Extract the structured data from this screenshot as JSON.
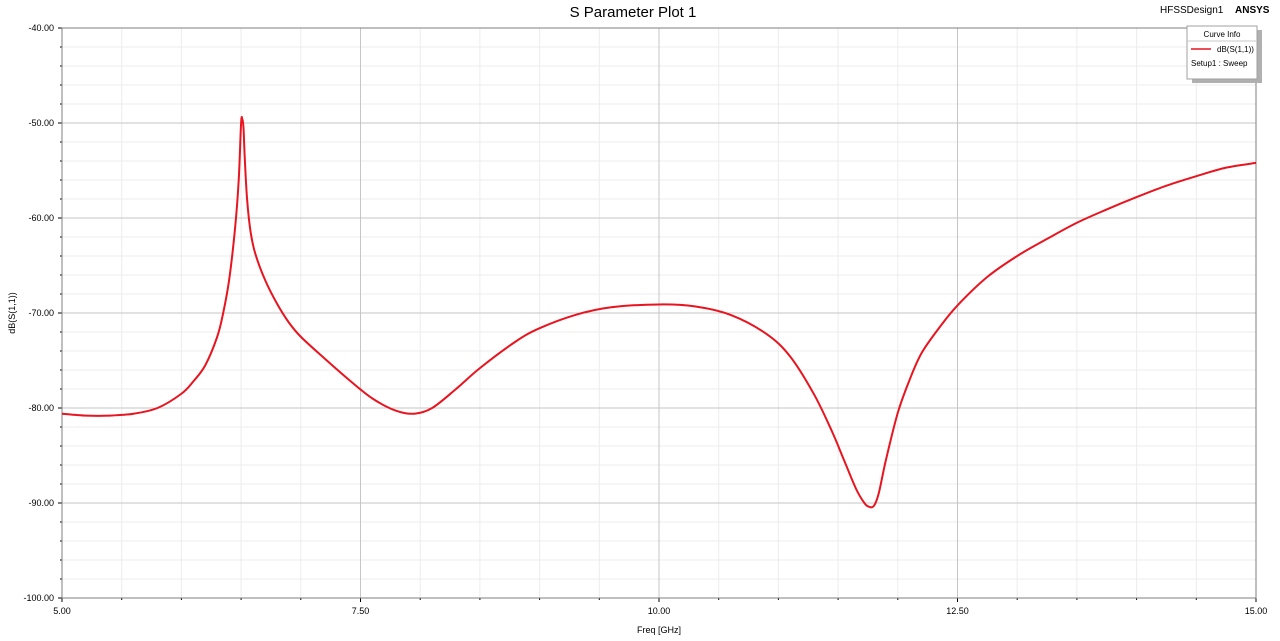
{
  "header": {
    "design_name": "HFSSDesign1",
    "brand": "ANSYS"
  },
  "legend": {
    "title": "Curve Info",
    "series_label": "dB(S(1,1))",
    "setup_label": "Setup1 : Sweep"
  },
  "chart_data": {
    "type": "line",
    "title": "S Parameter Plot 1",
    "xlabel": "Freq [GHz]",
    "ylabel": "dB(S(1,1))",
    "xlim": [
      5.0,
      15.0
    ],
    "ylim": [
      -100.0,
      -40.0
    ],
    "x_ticks": [
      "5.00",
      "7.50",
      "10.00",
      "12.50",
      "15.00"
    ],
    "y_ticks": [
      "-40.00",
      "-50.00",
      "-60.00",
      "-70.00",
      "-80.00",
      "-90.00",
      "-100.00"
    ],
    "grid": true,
    "legend_position": "top-right",
    "series": [
      {
        "name": "dB(S(1,1))",
        "color": "#e8141f",
        "x": [
          5.0,
          5.2,
          5.4,
          5.6,
          5.8,
          6.0,
          6.1,
          6.2,
          6.3,
          6.35,
          6.4,
          6.45,
          6.48,
          6.5,
          6.51,
          6.52,
          6.53,
          6.55,
          6.58,
          6.62,
          6.7,
          6.8,
          6.9,
          7.0,
          7.2,
          7.4,
          7.6,
          7.8,
          7.95,
          8.1,
          8.3,
          8.5,
          8.8,
          9.0,
          9.3,
          9.6,
          10.0,
          10.3,
          10.6,
          10.9,
          11.1,
          11.3,
          11.45,
          11.55,
          11.65,
          11.72,
          11.76,
          11.8,
          11.84,
          11.9,
          12.0,
          12.1,
          12.2,
          12.35,
          12.5,
          12.75,
          13.0,
          13.25,
          13.5,
          13.75,
          14.0,
          14.25,
          14.5,
          14.75,
          15.0
        ],
        "values": [
          -80.6,
          -80.8,
          -80.8,
          -80.6,
          -80.0,
          -78.5,
          -77.2,
          -75.5,
          -72.5,
          -70.0,
          -66.5,
          -61.0,
          -56.0,
          -50.0,
          -49.6,
          -50.5,
          -53.5,
          -58.0,
          -61.5,
          -63.8,
          -66.5,
          -69.0,
          -71.0,
          -72.5,
          -74.8,
          -77.0,
          -79.0,
          -80.3,
          -80.6,
          -80.0,
          -78.0,
          -75.8,
          -73.0,
          -71.6,
          -70.2,
          -69.4,
          -69.1,
          -69.3,
          -70.2,
          -72.2,
          -74.6,
          -78.6,
          -82.5,
          -85.5,
          -88.5,
          -90.0,
          -90.4,
          -90.3,
          -89.0,
          -85.5,
          -80.5,
          -77.0,
          -74.2,
          -71.5,
          -69.2,
          -66.2,
          -64.0,
          -62.2,
          -60.5,
          -59.1,
          -57.8,
          -56.6,
          -55.6,
          -54.7,
          -54.2
        ]
      }
    ]
  }
}
